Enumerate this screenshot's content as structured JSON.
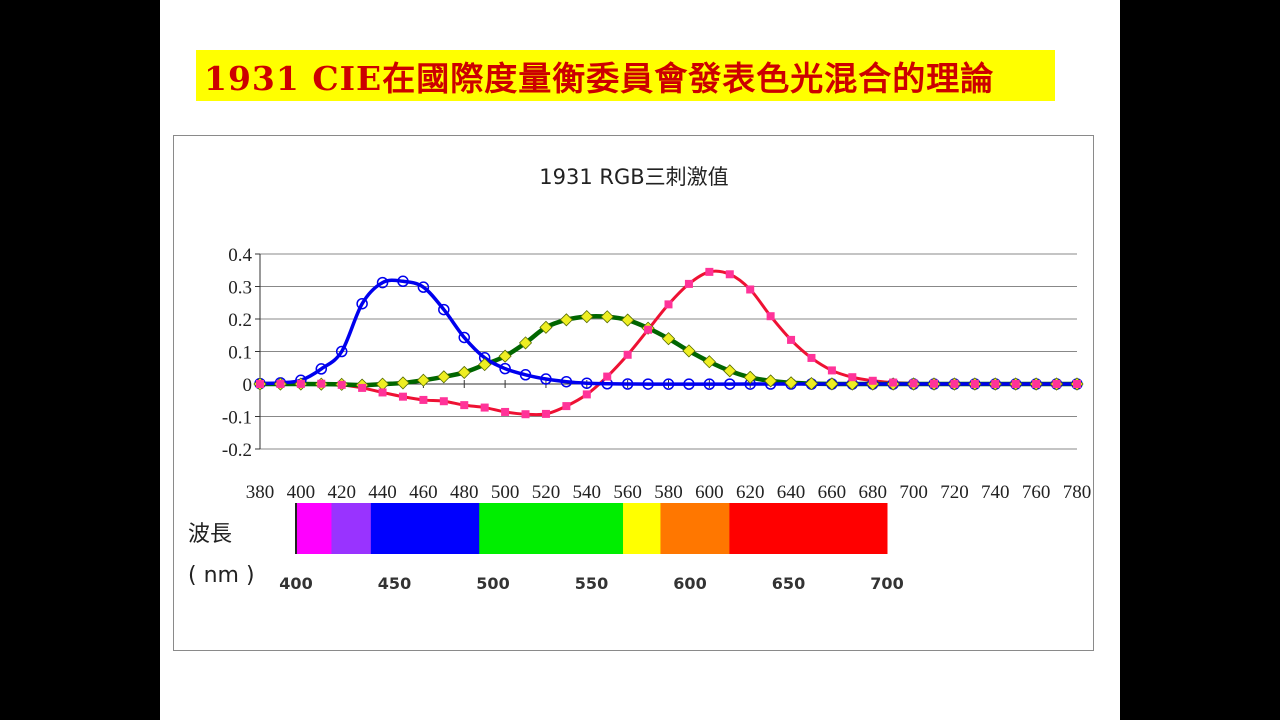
{
  "slide_title": "1931 CIE在國際度量衡委員會發表色光混合的理論",
  "colors": {
    "background": "#000000",
    "slide": "#ffffff",
    "title_banner": "#ffff00",
    "title_text": "#cc0000",
    "red_series": "#ee1133",
    "red_marker": "#ff3399",
    "green_series": "#006600",
    "green_marker": "#eeee22",
    "blue_series": "#0000ee",
    "gridline": "#888888"
  },
  "chart_data": {
    "type": "line",
    "title": "1931  RGB三刺激值",
    "xlabel": "",
    "ylabel": "",
    "x_ticks": [
      "380",
      "400",
      "420",
      "440",
      "460",
      "480",
      "500",
      "520",
      "540",
      "560",
      "580",
      "600",
      "620",
      "640",
      "660",
      "680",
      "700",
      "720",
      "740",
      "760",
      "780"
    ],
    "y_ticks": [
      "0.4",
      "0.3",
      "0.2",
      "0.1",
      "0",
      "-0.1",
      "-0.2"
    ],
    "xlim": [
      380,
      780
    ],
    "ylim": [
      -0.2,
      0.4
    ],
    "grid": "horizontal",
    "legend": "none",
    "x": [
      380,
      390,
      400,
      410,
      420,
      430,
      440,
      450,
      460,
      470,
      480,
      490,
      500,
      510,
      520,
      530,
      540,
      550,
      560,
      570,
      580,
      590,
      600,
      610,
      620,
      630,
      640,
      650,
      660,
      670,
      680,
      690,
      700,
      710,
      720,
      730,
      740,
      750,
      760,
      770,
      780
    ],
    "series": [
      {
        "color": "red",
        "marker": "square",
        "values": [
          3e-05,
          0.0001,
          0.0003,
          0.00084,
          -0.0026,
          -0.012,
          -0.026,
          -0.039,
          -0.049,
          -0.053,
          -0.065,
          -0.0725,
          -0.086,
          -0.093,
          -0.092,
          -0.068,
          -0.032,
          0.0228,
          0.0899,
          0.167,
          0.245,
          0.308,
          0.345,
          0.3376,
          0.2908,
          0.2086,
          0.1357,
          0.0802,
          0.0418,
          0.0209,
          0.0099,
          0.0044,
          0.0019,
          0.0009,
          0.0004,
          0.0002,
          0.0001,
          0,
          0,
          0,
          0
        ]
      },
      {
        "color": "green",
        "marker": "diamond",
        "values": [
          0,
          0,
          -0.0001,
          -0.0004,
          -0.0011,
          -0.0034,
          -0.0004,
          0.0033,
          0.0116,
          0.0222,
          0.0356,
          0.0597,
          0.0856,
          0.1265,
          0.1744,
          0.1976,
          0.2073,
          0.2069,
          0.1968,
          0.1719,
          0.1396,
          0.1019,
          0.0685,
          0.0405,
          0.0206,
          0.0095,
          0.0037,
          0.0012,
          0.0002,
          0,
          0,
          0,
          0,
          0,
          0,
          0,
          0,
          0,
          0,
          0,
          0
        ]
      },
      {
        "color": "blue",
        "marker": "circle",
        "values": [
          0.0012,
          0.0035,
          0.0115,
          0.0465,
          0.1,
          0.247,
          0.312,
          0.316,
          0.298,
          0.229,
          0.1432,
          0.0807,
          0.0473,
          0.0284,
          0.0153,
          0.0071,
          0.0025,
          0.0007,
          0,
          -0.0003,
          -0.0005,
          -0.0005,
          -0.0004,
          -0.0003,
          -0.0002,
          -0.0001,
          0,
          0,
          0,
          0,
          0,
          0,
          0,
          0,
          0,
          0,
          0,
          0,
          0,
          0,
          0
        ]
      }
    ]
  },
  "spectrum": {
    "label": "波長",
    "unit": "( nm )",
    "ticks": [
      "400",
      "450",
      "500",
      "550",
      "600",
      "650",
      "700"
    ],
    "range": [
      400,
      700
    ],
    "bands": [
      {
        "from": 400,
        "to": 418,
        "color": "#ff00ff"
      },
      {
        "from": 418,
        "to": 438,
        "color": "#9933ff"
      },
      {
        "from": 438,
        "to": 493,
        "color": "#0000ff"
      },
      {
        "from": 493,
        "to": 566,
        "color": "#00ee00"
      },
      {
        "from": 566,
        "to": 575,
        "color": "#ffff00"
      },
      {
        "from": 575,
        "to": 585,
        "color": "#ffff00"
      },
      {
        "from": 585,
        "to": 620,
        "color": "#ff7700"
      },
      {
        "from": 620,
        "to": 700,
        "color": "#ff0000"
      }
    ]
  }
}
